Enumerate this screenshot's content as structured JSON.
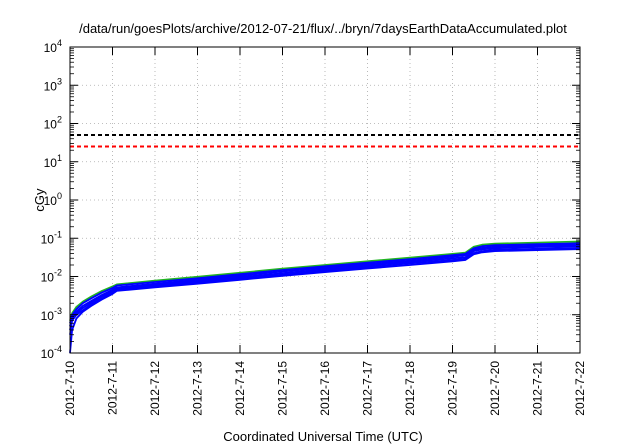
{
  "chart_data": {
    "type": "line",
    "title": "/data/run/goesPlots/archive/2012-07-21/flux/../bryn/7daysEarthDataAccumulated.plot",
    "xlabel": "Coordinated Universal Time (UTC)",
    "ylabel": "cGy",
    "x_tick_labels": [
      "2012-7-10",
      "2012-7-11",
      "2012-7-12",
      "2012-7-13",
      "2012-7-14",
      "2012-7-15",
      "2012-7-16",
      "2012-7-17",
      "2012-7-18",
      "2012-7-19",
      "2012-7-20",
      "2012-7-21",
      "2012-7-22"
    ],
    "xlim": [
      0,
      12
    ],
    "y_scale": "log",
    "ylim": [
      0.0001,
      10000
    ],
    "y_tick_labels": [
      {
        "base": "10",
        "exp": "-4"
      },
      {
        "base": "10",
        "exp": "-3"
      },
      {
        "base": "10",
        "exp": "-2"
      },
      {
        "base": "10",
        "exp": "-1"
      },
      {
        "base": "10",
        "exp": "0"
      },
      {
        "base": "10",
        "exp": "1"
      },
      {
        "base": "10",
        "exp": "2"
      },
      {
        "base": "10",
        "exp": "3"
      },
      {
        "base": "10",
        "exp": "4"
      }
    ],
    "grid": true,
    "threshold_lines": [
      {
        "y": 50,
        "color": "#000000",
        "style": "dashed"
      },
      {
        "y": 25,
        "color": "#ff0000",
        "style": "dashed"
      }
    ],
    "series": [
      {
        "color": "#22b422",
        "x": [
          0.0,
          0.05,
          0.15,
          0.3,
          0.5,
          0.75,
          1.0,
          1.1,
          2,
          3,
          4,
          5,
          6,
          7,
          8,
          9,
          9.3,
          9.5,
          9.7,
          10,
          11,
          12
        ],
        "y": [
          0.0007,
          0.0011,
          0.0016,
          0.0022,
          0.003,
          0.0042,
          0.0055,
          0.0062,
          0.0078,
          0.0098,
          0.0125,
          0.016,
          0.02,
          0.025,
          0.031,
          0.039,
          0.042,
          0.06,
          0.068,
          0.072,
          0.077,
          0.082
        ]
      },
      {
        "color": "#0000ff",
        "x": [
          0.0,
          0.05,
          0.15,
          0.3,
          0.5,
          0.75,
          1.0,
          1.1,
          2,
          3,
          4,
          5,
          6,
          7,
          8,
          9,
          9.3,
          9.5,
          9.7,
          10,
          11,
          12
        ],
        "y": [
          0.0006,
          0.001,
          0.0014,
          0.002,
          0.0027,
          0.0038,
          0.005,
          0.0058,
          0.0072,
          0.009,
          0.0115,
          0.0148,
          0.0185,
          0.023,
          0.0285,
          0.036,
          0.039,
          0.055,
          0.062,
          0.066,
          0.07,
          0.074
        ]
      },
      {
        "color": "#0000ff",
        "x": [
          0.0,
          0.05,
          0.15,
          0.3,
          0.5,
          0.75,
          1.0,
          1.1,
          2,
          3,
          4,
          5,
          6,
          7,
          8,
          9,
          9.3,
          9.5,
          9.7,
          10,
          11,
          12
        ],
        "y": [
          0.0005,
          0.0009,
          0.0012,
          0.0017,
          0.0023,
          0.0033,
          0.0045,
          0.0052,
          0.0065,
          0.0082,
          0.0105,
          0.0135,
          0.017,
          0.021,
          0.026,
          0.033,
          0.036,
          0.05,
          0.056,
          0.06,
          0.064,
          0.068
        ]
      },
      {
        "color": "#0000ff",
        "x": [
          0.0,
          0.05,
          0.15,
          0.3,
          0.5,
          0.75,
          1.0,
          1.1,
          2,
          3,
          4,
          5,
          6,
          7,
          8,
          9,
          9.3,
          9.5,
          9.7,
          10,
          11,
          12
        ],
        "y": [
          0.0004,
          0.0008,
          0.0011,
          0.0015,
          0.0021,
          0.003,
          0.0041,
          0.0048,
          0.006,
          0.0075,
          0.0096,
          0.0123,
          0.0155,
          0.0192,
          0.024,
          0.03,
          0.032,
          0.046,
          0.051,
          0.055,
          0.059,
          0.062
        ]
      },
      {
        "color": "#0000ff",
        "x": [
          0.0,
          0.05,
          0.15,
          0.3,
          0.5,
          0.75,
          1.0,
          1.1,
          2,
          3,
          4,
          5,
          6,
          7,
          8,
          9,
          9.3,
          9.5,
          9.7,
          10,
          11,
          12
        ],
        "y": [
          0.0003,
          0.0007,
          0.001,
          0.0013,
          0.0019,
          0.0027,
          0.0038,
          0.0045,
          0.0055,
          0.0069,
          0.0088,
          0.0112,
          0.0142,
          0.0175,
          0.022,
          0.027,
          0.029,
          0.041,
          0.046,
          0.05,
          0.053,
          0.056
        ]
      },
      {
        "color": "#0000ff",
        "x": [
          0.0,
          0.05,
          0.15,
          0.3,
          0.5,
          0.75,
          1.0,
          1.1,
          2,
          3,
          4,
          5,
          6,
          7,
          8,
          9,
          9.3,
          9.5,
          9.7,
          10,
          11,
          12
        ],
        "y": [
          0.0001,
          0.0004,
          0.0008,
          0.0012,
          0.0017,
          0.0025,
          0.0035,
          0.0042,
          0.0052,
          0.0065,
          0.0082,
          0.0104,
          0.013,
          0.0162,
          0.02,
          0.025,
          0.027,
          0.038,
          0.043,
          0.046,
          0.049,
          0.052
        ]
      }
    ]
  }
}
